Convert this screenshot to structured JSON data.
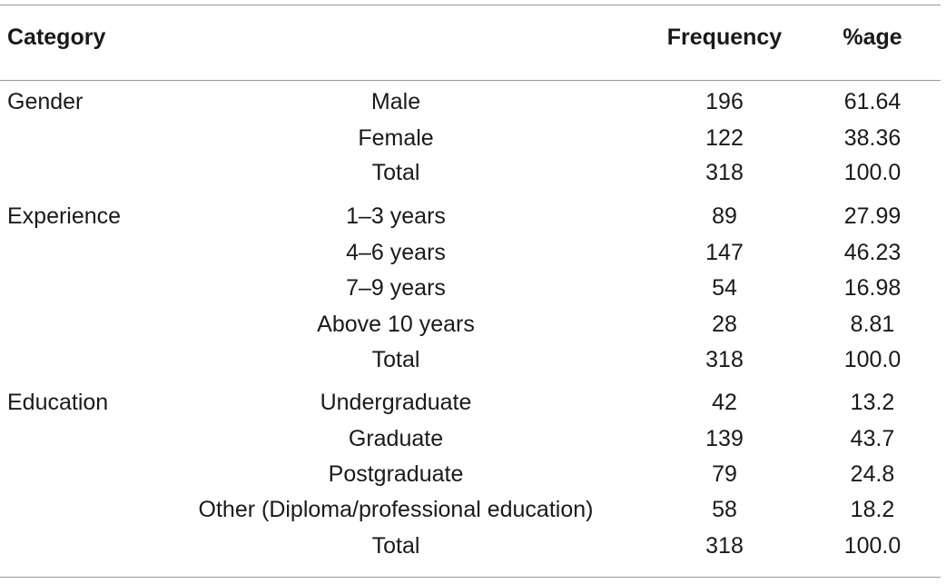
{
  "header": {
    "category": "Category",
    "frequency": "Frequency",
    "percentage": "%age"
  },
  "groups": [
    {
      "name": "Gender",
      "rows": [
        {
          "label": "Male",
          "frequency": "196",
          "percentage": "61.64"
        },
        {
          "label": "Female",
          "frequency": "122",
          "percentage": "38.36"
        },
        {
          "label": "Total",
          "frequency": "318",
          "percentage": "100.0"
        }
      ]
    },
    {
      "name": "Experience",
      "rows": [
        {
          "label": "1–3 years",
          "frequency": "89",
          "percentage": "27.99"
        },
        {
          "label": "4–6 years",
          "frequency": "147",
          "percentage": "46.23"
        },
        {
          "label": "7–9 years",
          "frequency": "54",
          "percentage": "16.98"
        },
        {
          "label": "Above 10 years",
          "frequency": "28",
          "percentage": "8.81"
        },
        {
          "label": "Total",
          "frequency": "318",
          "percentage": "100.0"
        }
      ]
    },
    {
      "name": "Education",
      "rows": [
        {
          "label": "Undergraduate",
          "frequency": "42",
          "percentage": "13.2"
        },
        {
          "label": "Graduate",
          "frequency": "139",
          "percentage": "43.7"
        },
        {
          "label": "Postgraduate",
          "frequency": "79",
          "percentage": "24.8"
        },
        {
          "label": "Other (Diploma/professional education)",
          "frequency": "58",
          "percentage": "18.2"
        },
        {
          "label": "Total",
          "frequency": "318",
          "percentage": "100.0"
        }
      ]
    }
  ]
}
